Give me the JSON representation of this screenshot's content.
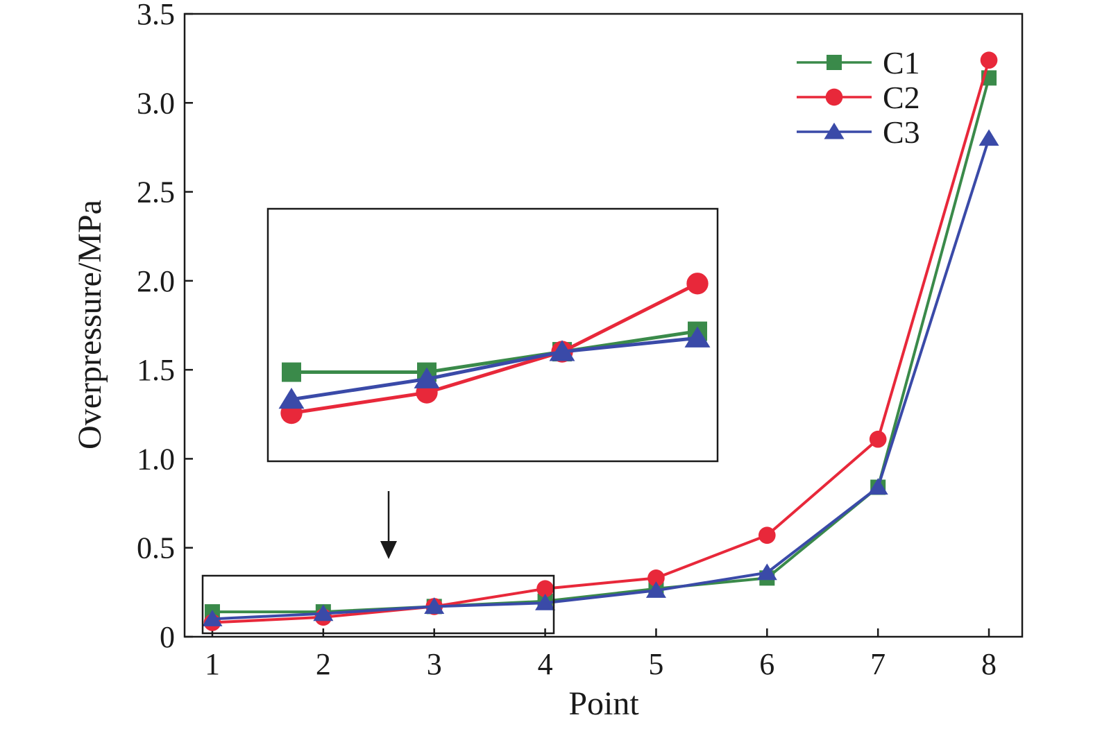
{
  "chart_data": {
    "type": "line",
    "xlabel": "Point",
    "ylabel": "Overpressure/MPa",
    "x": [
      1,
      2,
      3,
      4,
      5,
      6,
      7,
      8
    ],
    "x_ticks": [
      "1",
      "2",
      "3",
      "4",
      "5",
      "6",
      "7",
      "8"
    ],
    "xlim": [
      0.75,
      8.3
    ],
    "ylim": [
      0,
      3.5
    ],
    "y_ticks": [
      "0",
      "0.5",
      "1.0",
      "1.5",
      "2.0",
      "2.5",
      "3.0",
      "3.5"
    ],
    "y_tick_values": [
      0,
      0.5,
      1.0,
      1.5,
      2.0,
      2.5,
      3.0,
      3.5
    ],
    "grid": false,
    "legend_position": "top-right",
    "series": [
      {
        "name": "C1",
        "color": "#3a8a4a",
        "marker": "square",
        "values": [
          0.14,
          0.14,
          0.17,
          0.2,
          0.27,
          0.33,
          0.84,
          3.14
        ]
      },
      {
        "name": "C2",
        "color": "#e8283a",
        "marker": "circle",
        "values": [
          0.08,
          0.11,
          0.17,
          0.27,
          0.33,
          0.57,
          1.11,
          3.24
        ]
      },
      {
        "name": "C3",
        "color": "#3a4aa8",
        "marker": "triangle",
        "values": [
          0.1,
          0.13,
          0.17,
          0.19,
          0.26,
          0.36,
          0.84,
          2.8
        ]
      }
    ],
    "inset": {
      "description": "zoomed view of points 1-4",
      "x_range": [
        1,
        4
      ],
      "y_range": [
        0.05,
        0.34
      ]
    }
  }
}
